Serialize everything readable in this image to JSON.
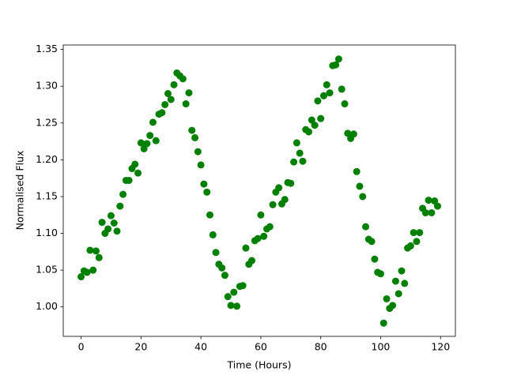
{
  "chart_data": {
    "type": "scatter",
    "xlabel": "Time (Hours)",
    "ylabel": "Normalised Flux",
    "x": [
      0,
      1,
      2,
      3,
      4,
      5,
      6,
      7,
      8,
      9,
      10,
      11,
      12,
      13,
      14,
      15,
      16,
      17,
      18,
      19,
      20,
      21,
      22,
      23,
      24,
      25,
      26,
      27,
      28,
      29,
      30,
      31,
      32,
      33,
      34,
      35,
      36,
      37,
      38,
      39,
      40,
      41,
      42,
      43,
      44,
      45,
      46,
      47,
      48,
      49,
      50,
      51,
      52,
      53,
      54,
      55,
      56,
      57,
      58,
      59,
      60,
      61,
      62,
      63,
      64,
      65,
      66,
      67,
      68,
      69,
      70,
      71,
      72,
      73,
      74,
      75,
      76,
      77,
      78,
      79,
      80,
      81,
      82,
      83,
      84,
      85,
      86,
      87,
      88,
      89,
      90,
      91,
      92,
      93,
      94,
      95,
      96,
      97,
      98,
      99,
      100,
      101,
      102,
      103,
      104,
      105,
      106,
      107,
      108,
      109,
      110,
      111,
      112,
      113,
      114,
      115,
      116,
      117,
      118,
      119
    ],
    "series": [
      {
        "color": "#008000",
        "values": [
          1.041,
          1.049,
          1.047,
          1.077,
          1.05,
          1.076,
          1.067,
          1.115,
          1.1,
          1.106,
          1.124,
          1.114,
          1.103,
          1.137,
          1.153,
          1.172,
          1.172,
          1.188,
          1.194,
          1.182,
          1.223,
          1.215,
          1.222,
          1.233,
          1.251,
          1.226,
          1.262,
          1.264,
          1.275,
          1.29,
          1.282,
          1.302,
          1.318,
          1.314,
          1.31,
          1.276,
          1.291,
          1.24,
          1.23,
          1.211,
          1.193,
          1.167,
          1.156,
          1.125,
          1.098,
          1.074,
          1.058,
          1.053,
          1.043,
          1.014,
          1.002,
          1.02,
          1.001,
          1.028,
          1.029,
          1.08,
          1.058,
          1.063,
          1.09,
          1.093,
          1.125,
          1.096,
          1.106,
          1.109,
          1.139,
          1.156,
          1.162,
          1.14,
          1.146,
          1.169,
          1.168,
          1.197,
          1.223,
          1.209,
          1.198,
          1.241,
          1.238,
          1.254,
          1.247,
          1.28,
          1.256,
          1.287,
          1.302,
          1.291,
          1.328,
          1.329,
          1.337,
          1.296,
          1.276,
          1.236,
          1.229,
          1.235,
          1.184,
          1.164,
          1.15,
          1.109,
          1.092,
          1.089,
          1.065,
          1.047,
          1.045,
          0.978,
          1.011,
          0.998,
          1.002,
          1.035,
          1.018,
          1.049,
          1.032,
          1.08,
          1.083,
          1.101,
          1.089,
          1.101,
          1.134,
          1.128,
          1.145,
          1.128,
          1.144,
          1.137
        ]
      }
    ],
    "xlim": [
      -5.95,
      124.95
    ],
    "xticks": [
      0,
      20,
      40,
      60,
      80,
      100,
      120
    ],
    "ylim": [
      0.96,
      1.356
    ],
    "yticks": [
      {
        "value": 1.0,
        "label": "1.00"
      },
      1.05,
      {
        "value": 1.1,
        "label": "1.10"
      },
      1.15,
      {
        "value": 1.2,
        "label": "1.20"
      },
      1.25,
      {
        "value": 1.3,
        "label": "1.30"
      },
      1.35
    ]
  }
}
